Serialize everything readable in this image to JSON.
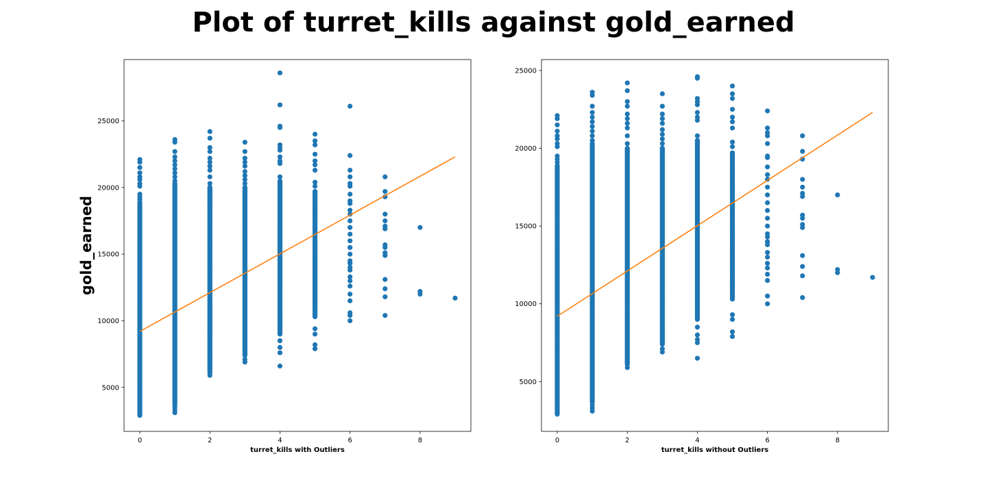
{
  "figure": {
    "title": "Plot of turret_kills against gold_earned",
    "colors": {
      "points": "#1f77b4",
      "fit_line": "#ff7f0e",
      "background": "#ffffff"
    }
  },
  "chart_data": [
    {
      "type": "scatter",
      "xlabel": "turret_kills with Outliers",
      "ylabel": "gold_earned",
      "xlim": [
        -0.45,
        9.45
      ],
      "ylim": [
        1700,
        29600
      ],
      "xticks": [
        0,
        2,
        4,
        6,
        8
      ],
      "yticks": [
        5000,
        10000,
        15000,
        20000,
        25000
      ],
      "grid": false,
      "legend": "none",
      "points_by_x": [
        {
          "x": 0,
          "dense_range": [
            2900,
            18900
          ],
          "extra_y": [
            19100,
            19300,
            19500,
            20100,
            20300,
            20600,
            20800,
            21100,
            21500,
            21900,
            22100
          ]
        },
        {
          "x": 1,
          "dense_range": [
            3700,
            20300
          ],
          "extra_y": [
            3100,
            3300,
            3500,
            20500,
            20800,
            21100,
            21400,
            21700,
            22000,
            22300,
            22700,
            23400,
            23600
          ]
        },
        {
          "x": 2,
          "dense_range": [
            6100,
            20000
          ],
          "extra_y": [
            5900,
            20300,
            20800,
            21300,
            21600,
            21900,
            22200,
            22700,
            23000,
            23700,
            24200
          ]
        },
        {
          "x": 3,
          "dense_range": [
            7400,
            20000
          ],
          "extra_y": [
            6900,
            7100,
            20300,
            20600,
            20900,
            21200,
            21600,
            21900,
            22200,
            22700,
            23400
          ]
        },
        {
          "x": 4,
          "dense_range": [
            9000,
            20500
          ],
          "extra_y": [
            6600,
            7600,
            8000,
            8500,
            20800,
            21800,
            22000,
            22300,
            22800,
            23000,
            23200,
            24500,
            24600,
            26200,
            28600
          ]
        },
        {
          "x": 5,
          "dense_range": [
            10400,
            19700
          ],
          "extra_y": [
            7900,
            8200,
            9000,
            9400,
            10300,
            20100,
            20400,
            21300,
            21700,
            22000,
            22500,
            23200,
            23500,
            24000
          ]
        },
        {
          "x": 6,
          "dense_range": [],
          "extra_y": [
            10000,
            10400,
            10600,
            11500,
            12000,
            12600,
            13000,
            13300,
            13800,
            14000,
            14300,
            14500,
            15000,
            15500,
            16000,
            16500,
            17000,
            17500,
            18000,
            18300,
            18800,
            19000,
            19500,
            20100,
            20300,
            20800,
            21300,
            22400,
            26100
          ]
        },
        {
          "x": 7,
          "dense_range": [],
          "extra_y": [
            10400,
            11800,
            12400,
            13100,
            14900,
            15100,
            15500,
            15700,
            16900,
            17100,
            17500,
            18000,
            19300,
            19700,
            20800
          ]
        },
        {
          "x": 8,
          "dense_range": [],
          "extra_y": [
            12000,
            12200,
            17000
          ]
        },
        {
          "x": 9,
          "dense_range": [],
          "extra_y": [
            11700
          ]
        }
      ],
      "fit_line": {
        "x": [
          0,
          9
        ],
        "y": [
          9200,
          22300
        ]
      }
    },
    {
      "type": "scatter",
      "xlabel": "turret_kills without Outliers",
      "ylabel": "",
      "xlim": [
        -0.45,
        9.45
      ],
      "ylim": [
        1800,
        25700
      ],
      "xticks": [
        0,
        2,
        4,
        6,
        8
      ],
      "yticks": [
        5000,
        10000,
        15000,
        20000,
        25000
      ],
      "grid": false,
      "legend": "none",
      "points_by_x": [
        {
          "x": 0,
          "dense_range": [
            2900,
            18900
          ],
          "extra_y": [
            19100,
            19300,
            19500,
            20100,
            20300,
            20600,
            20800,
            21100,
            21500,
            21900,
            22100
          ]
        },
        {
          "x": 1,
          "dense_range": [
            3700,
            20300
          ],
          "extra_y": [
            3100,
            3300,
            3500,
            20500,
            20800,
            21100,
            21400,
            21700,
            22000,
            22300,
            22700,
            23400,
            23600
          ]
        },
        {
          "x": 2,
          "dense_range": [
            6100,
            20000
          ],
          "extra_y": [
            5900,
            20300,
            20800,
            21300,
            21600,
            21900,
            22200,
            22700,
            23000,
            23700,
            24200
          ]
        },
        {
          "x": 3,
          "dense_range": [
            7400,
            20000
          ],
          "extra_y": [
            6900,
            7100,
            20300,
            20600,
            20900,
            21200,
            21600,
            21900,
            22200,
            22700,
            23500
          ]
        },
        {
          "x": 4,
          "dense_range": [
            9000,
            20500
          ],
          "extra_y": [
            6500,
            7500,
            7700,
            8000,
            8500,
            20800,
            21800,
            22000,
            22300,
            22800,
            23000,
            23200,
            24500,
            24600
          ]
        },
        {
          "x": 5,
          "dense_range": [
            10400,
            19700
          ],
          "extra_y": [
            7900,
            8200,
            9000,
            9300,
            10300,
            20100,
            20400,
            21300,
            21700,
            22000,
            22500,
            23200,
            23500,
            24000
          ]
        },
        {
          "x": 6,
          "dense_range": [],
          "extra_y": [
            10000,
            10500,
            11500,
            11900,
            12300,
            12600,
            13000,
            13300,
            13800,
            14000,
            14300,
            14500,
            15000,
            15500,
            16000,
            16500,
            17000,
            17500,
            18000,
            18300,
            18800,
            19400,
            19500,
            20300,
            20800,
            21000,
            21300,
            22400
          ]
        },
        {
          "x": 7,
          "dense_range": [],
          "extra_y": [
            10400,
            11800,
            12400,
            13100,
            14900,
            15100,
            15500,
            15700,
            16900,
            17100,
            17500,
            18000,
            19300,
            19800,
            20800
          ]
        },
        {
          "x": 8,
          "dense_range": [],
          "extra_y": [
            12000,
            12200,
            17000
          ]
        },
        {
          "x": 9,
          "dense_range": [],
          "extra_y": [
            11700
          ]
        }
      ],
      "fit_line": {
        "x": [
          0,
          9
        ],
        "y": [
          9200,
          22300
        ]
      }
    }
  ]
}
